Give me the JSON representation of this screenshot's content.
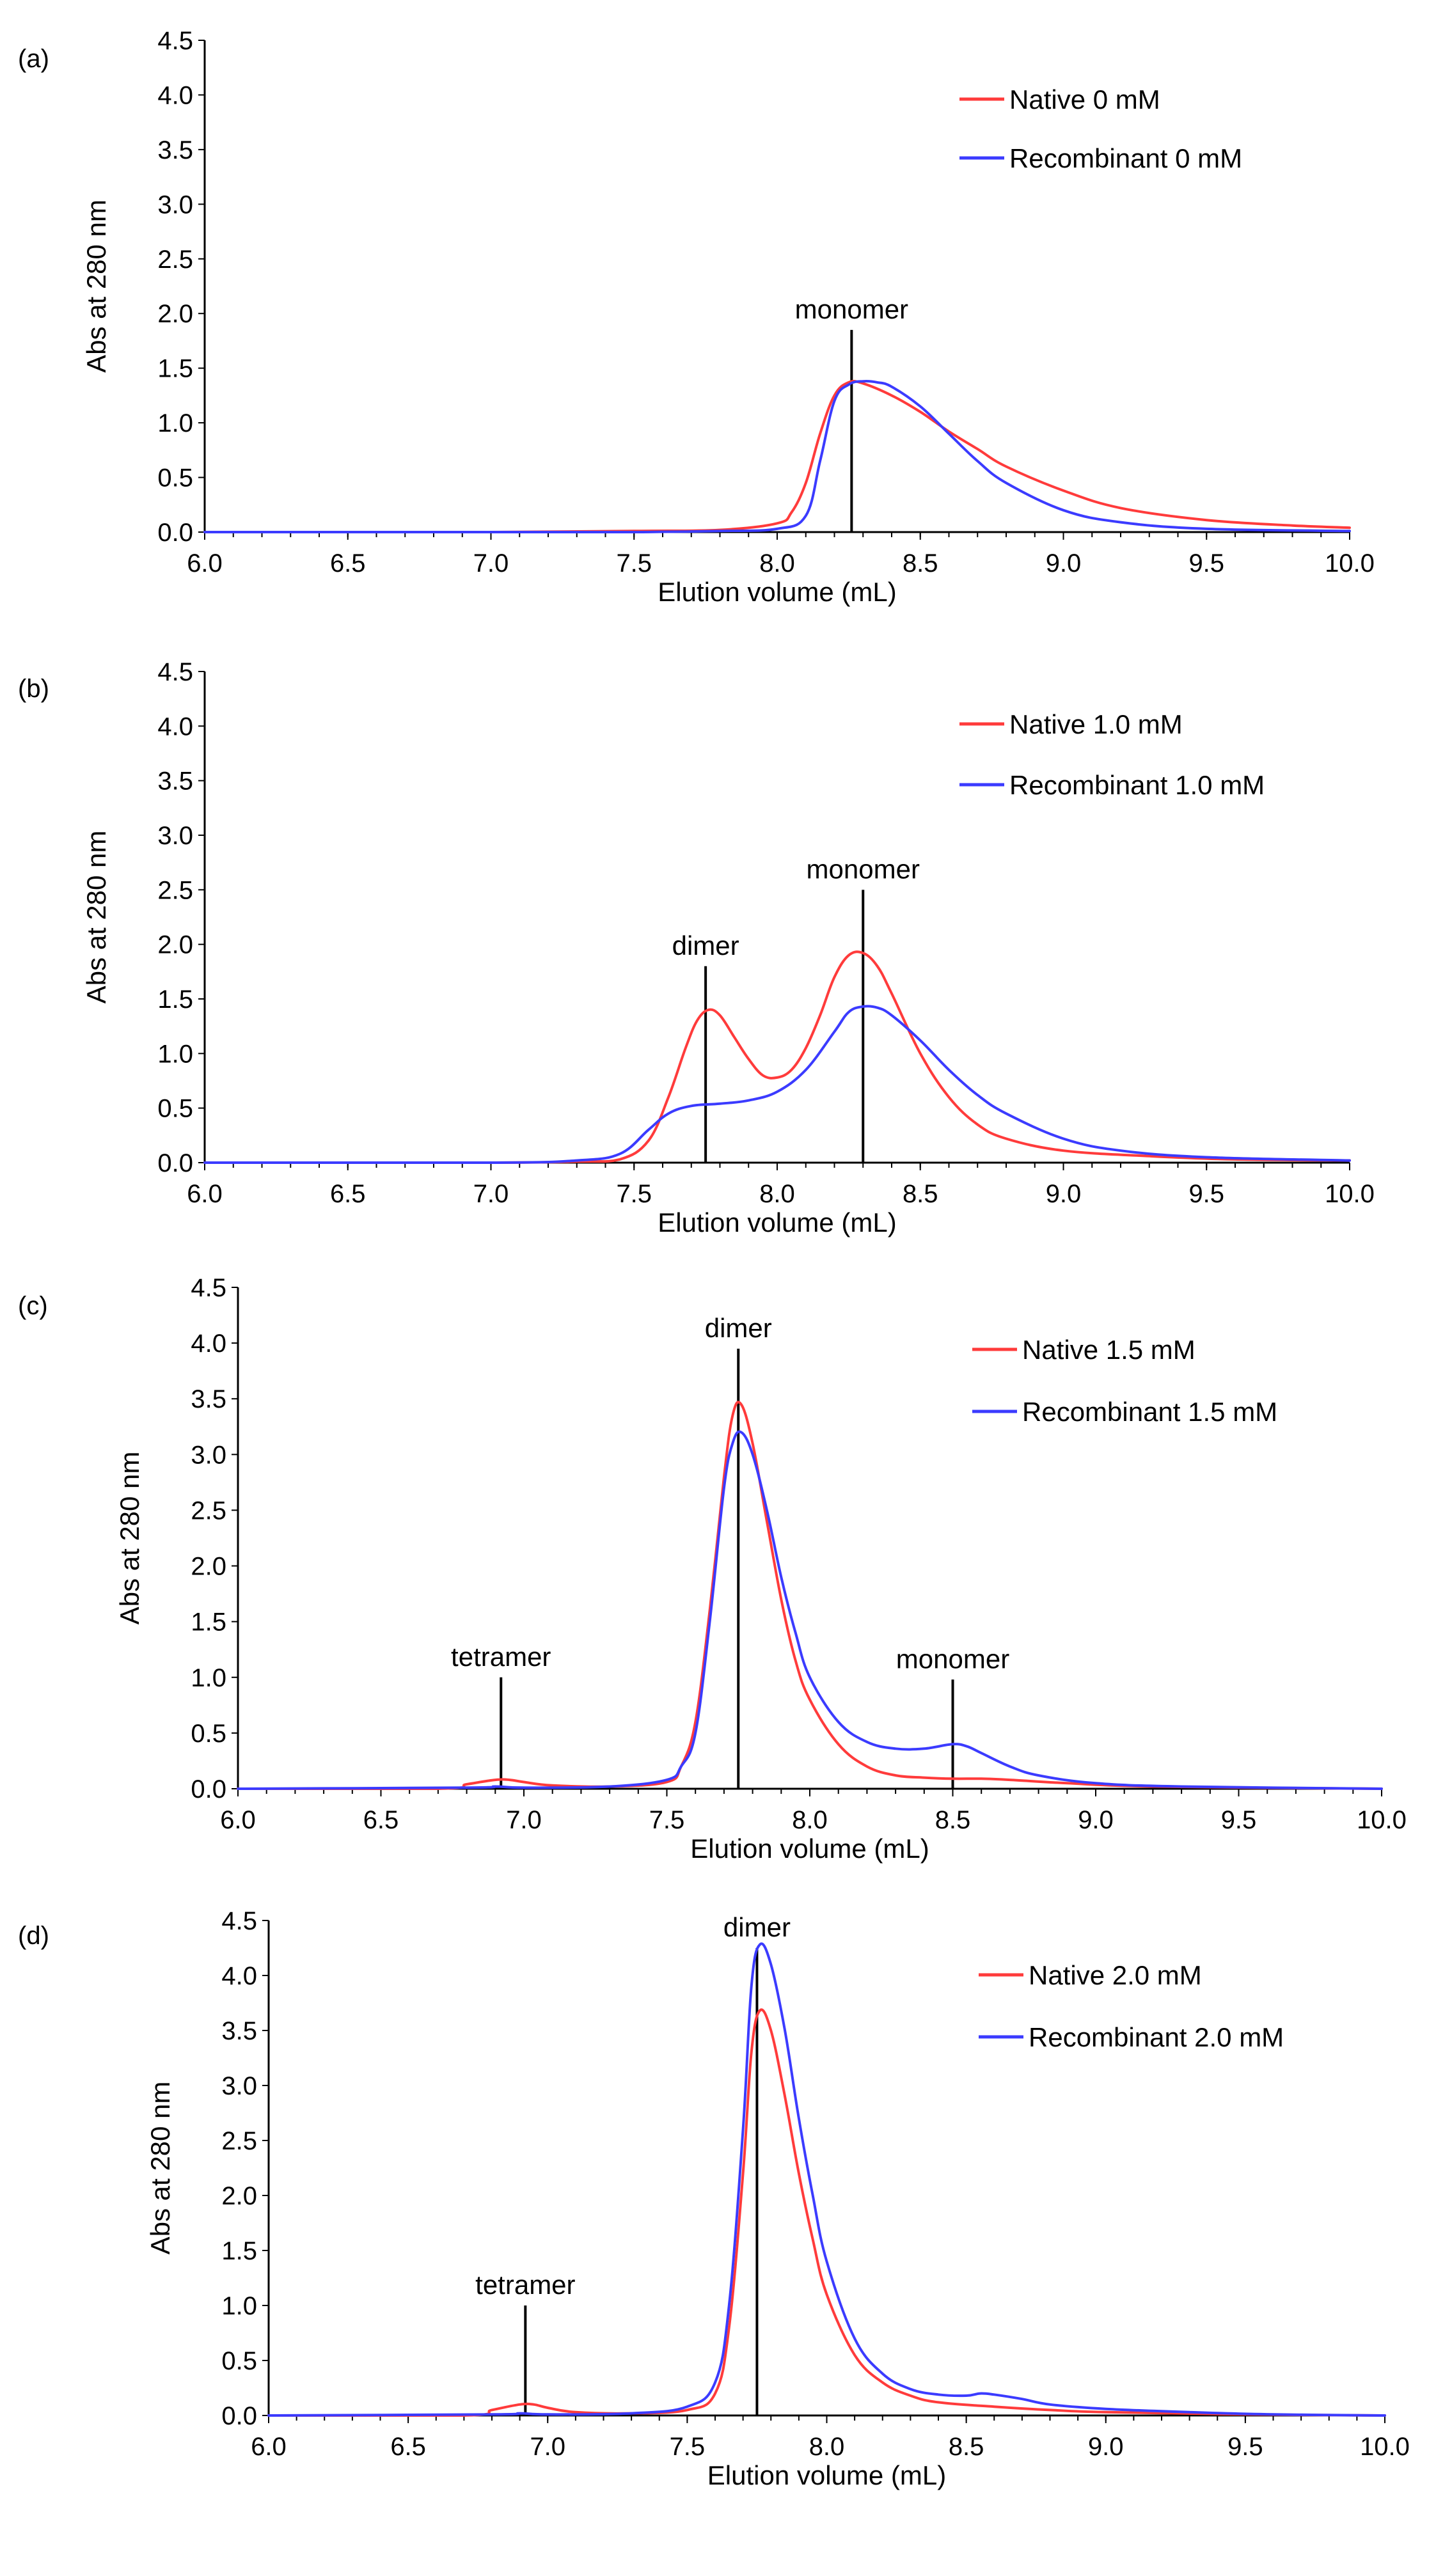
{
  "colors": {
    "native": "#ff3b3b",
    "recombinant": "#3b3bff",
    "axis": "#000000"
  },
  "chart_data": [
    {
      "panel_label": "(a)",
      "type": "line",
      "xlabel": "Elution volume (mL)",
      "ylabel": "Abs at 280 nm",
      "xlim": [
        6.0,
        10.0
      ],
      "ylim": [
        0.0,
        4.5
      ],
      "xticks": [
        "6.0",
        "6.5",
        "7.0",
        "7.5",
        "8.0",
        "8.5",
        "9.0",
        "9.5",
        "10.0"
      ],
      "yticks": [
        "0.0",
        "0.5",
        "1.0",
        "1.5",
        "2.0",
        "2.5",
        "3.0",
        "3.5",
        "4.0",
        "4.5"
      ],
      "legend_position": "top-right",
      "series": [
        {
          "name": "Native 0 mM",
          "color_key": "native",
          "x": [
            6.0,
            6.4,
            7.0,
            7.5,
            7.8,
            8.0,
            8.05,
            8.1,
            8.15,
            8.2,
            8.25,
            8.3,
            8.4,
            8.5,
            8.6,
            8.7,
            8.8,
            9.0,
            9.2,
            9.5,
            9.8,
            10.0
          ],
          "y": [
            0.0,
            0.0,
            0.0,
            0.01,
            0.02,
            0.08,
            0.18,
            0.45,
            0.9,
            1.25,
            1.37,
            1.36,
            1.25,
            1.1,
            0.92,
            0.76,
            0.6,
            0.38,
            0.22,
            0.11,
            0.06,
            0.04
          ]
        },
        {
          "name": "Recombinant 0 mM",
          "color_key": "recombinant",
          "x": [
            6.0,
            7.0,
            7.5,
            7.8,
            8.0,
            8.1,
            8.15,
            8.2,
            8.25,
            8.3,
            8.35,
            8.4,
            8.5,
            8.6,
            8.7,
            8.8,
            9.0,
            9.2,
            9.5,
            10.0
          ],
          "y": [
            0.0,
            0.0,
            0.0,
            0.01,
            0.03,
            0.15,
            0.65,
            1.2,
            1.35,
            1.38,
            1.37,
            1.33,
            1.15,
            0.9,
            0.65,
            0.45,
            0.2,
            0.09,
            0.03,
            0.01
          ]
        }
      ],
      "annotations": [
        {
          "text": "monomer",
          "x": 8.26,
          "line_top": 1.85
        }
      ]
    },
    {
      "panel_label": "(b)",
      "type": "line",
      "xlabel": "Elution volume (mL)",
      "ylabel": "Abs at 280 nm",
      "xlim": [
        6.0,
        10.0
      ],
      "ylim": [
        0.0,
        4.5
      ],
      "xticks": [
        "6.0",
        "6.5",
        "7.0",
        "7.5",
        "8.0",
        "8.5",
        "9.0",
        "9.5",
        "10.0"
      ],
      "yticks": [
        "0.0",
        "0.5",
        "1.0",
        "1.5",
        "2.0",
        "2.5",
        "3.0",
        "3.5",
        "4.0",
        "4.5"
      ],
      "legend_position": "top-right",
      "series": [
        {
          "name": "Native 1.0 mM",
          "color_key": "native",
          "x": [
            6.0,
            7.0,
            7.3,
            7.45,
            7.55,
            7.62,
            7.68,
            7.72,
            7.76,
            7.8,
            7.85,
            7.9,
            7.95,
            8.0,
            8.05,
            8.1,
            8.15,
            8.2,
            8.25,
            8.3,
            8.35,
            8.4,
            8.5,
            8.6,
            8.7,
            8.8,
            9.0,
            9.3,
            9.6,
            10.0
          ],
          "y": [
            0.0,
            0.0,
            0.01,
            0.03,
            0.2,
            0.6,
            1.05,
            1.3,
            1.4,
            1.35,
            1.15,
            0.95,
            0.8,
            0.78,
            0.85,
            1.05,
            1.35,
            1.7,
            1.9,
            1.92,
            1.8,
            1.55,
            1.0,
            0.6,
            0.35,
            0.22,
            0.11,
            0.06,
            0.03,
            0.02
          ]
        },
        {
          "name": "Recombinant 1.0 mM",
          "color_key": "recombinant",
          "x": [
            6.0,
            7.0,
            7.3,
            7.45,
            7.55,
            7.62,
            7.7,
            7.8,
            7.9,
            8.0,
            8.1,
            8.2,
            8.25,
            8.3,
            8.35,
            8.4,
            8.5,
            8.6,
            8.7,
            8.8,
            9.0,
            9.2,
            9.5,
            10.0
          ],
          "y": [
            0.0,
            0.0,
            0.02,
            0.08,
            0.3,
            0.45,
            0.52,
            0.54,
            0.57,
            0.65,
            0.85,
            1.2,
            1.38,
            1.43,
            1.42,
            1.35,
            1.12,
            0.85,
            0.62,
            0.45,
            0.22,
            0.11,
            0.05,
            0.02
          ]
        }
      ],
      "annotations": [
        {
          "text": "dimer",
          "x": 7.75,
          "line_top": 1.8
        },
        {
          "text": "monomer",
          "x": 8.3,
          "line_top": 2.5
        }
      ]
    },
    {
      "panel_label": "(c)",
      "type": "line",
      "xlabel": "Elution volume (mL)",
      "ylabel": "Abs at 280 nm",
      "xlim": [
        6.0,
        10.0
      ],
      "ylim": [
        0.0,
        4.5
      ],
      "xticks": [
        "6.0",
        "6.5",
        "7.0",
        "7.5",
        "8.0",
        "8.5",
        "9.0",
        "9.5",
        "10.0"
      ],
      "yticks": [
        "0.0",
        "0.5",
        "1.0",
        "1.5",
        "2.0",
        "2.5",
        "3.0",
        "3.5",
        "4.0",
        "4.5"
      ],
      "legend_position": "top-right",
      "series": [
        {
          "name": "Native 1.5 mM",
          "color_key": "native",
          "x": [
            6.0,
            6.7,
            6.8,
            6.9,
            6.95,
            7.0,
            7.1,
            7.3,
            7.5,
            7.55,
            7.6,
            7.65,
            7.7,
            7.73,
            7.76,
            7.8,
            7.85,
            7.9,
            7.95,
            8.0,
            8.1,
            8.2,
            8.3,
            8.4,
            8.5,
            8.6,
            8.7,
            8.9,
            9.2,
            10.0
          ],
          "y": [
            0.0,
            0.0,
            0.04,
            0.08,
            0.08,
            0.06,
            0.03,
            0.02,
            0.06,
            0.2,
            0.6,
            1.6,
            2.8,
            3.35,
            3.45,
            3.1,
            2.4,
            1.7,
            1.15,
            0.8,
            0.4,
            0.2,
            0.12,
            0.1,
            0.09,
            0.09,
            0.08,
            0.05,
            0.02,
            0.0
          ]
        },
        {
          "name": "Recombinant 1.5 mM",
          "color_key": "recombinant",
          "x": [
            6.0,
            6.8,
            6.9,
            7.0,
            7.3,
            7.5,
            7.55,
            7.6,
            7.65,
            7.7,
            7.73,
            7.76,
            7.8,
            7.85,
            7.9,
            7.95,
            8.0,
            8.1,
            8.2,
            8.3,
            8.4,
            8.5,
            8.55,
            8.6,
            8.7,
            8.8,
            9.0,
            9.3,
            10.0
          ],
          "y": [
            0.0,
            0.01,
            0.02,
            0.01,
            0.02,
            0.08,
            0.2,
            0.5,
            1.5,
            2.7,
            3.1,
            3.2,
            3.0,
            2.5,
            1.9,
            1.4,
            1.0,
            0.6,
            0.42,
            0.36,
            0.36,
            0.4,
            0.38,
            0.32,
            0.2,
            0.12,
            0.05,
            0.02,
            0.0
          ]
        }
      ],
      "annotations": [
        {
          "text": "tetramer",
          "x": 6.92,
          "line_top": 1.0
        },
        {
          "text": "dimer",
          "x": 7.75,
          "line_top": 3.95
        },
        {
          "text": "monomer",
          "x": 8.5,
          "line_top": 0.98
        }
      ]
    },
    {
      "panel_label": "(d)",
      "type": "line",
      "xlabel": "Elution volume (mL)",
      "ylabel": "Abs at 280 nm",
      "xlim": [
        6.0,
        10.0
      ],
      "ylim": [
        0.0,
        4.5
      ],
      "xticks": [
        "6.0",
        "6.5",
        "7.0",
        "7.5",
        "8.0",
        "8.5",
        "9.0",
        "9.5",
        "10.0"
      ],
      "yticks": [
        "0.0",
        "0.5",
        "1.0",
        "1.5",
        "2.0",
        "2.5",
        "3.0",
        "3.5",
        "4.0",
        "4.5"
      ],
      "legend_position": "top-right",
      "series": [
        {
          "name": "Native 2.0 mM",
          "color_key": "native",
          "x": [
            6.0,
            6.7,
            6.8,
            6.9,
            6.95,
            7.0,
            7.1,
            7.3,
            7.5,
            7.6,
            7.65,
            7.7,
            7.73,
            7.76,
            7.8,
            7.85,
            7.9,
            7.95,
            8.0,
            8.1,
            8.2,
            8.3,
            8.4,
            8.6,
            8.8,
            9.0,
            9.5,
            10.0
          ],
          "y": [
            0.0,
            0.0,
            0.05,
            0.1,
            0.1,
            0.07,
            0.03,
            0.02,
            0.05,
            0.2,
            0.8,
            2.2,
            3.3,
            3.68,
            3.5,
            2.9,
            2.2,
            1.6,
            1.1,
            0.55,
            0.3,
            0.18,
            0.12,
            0.08,
            0.05,
            0.03,
            0.01,
            0.0
          ]
        },
        {
          "name": "Recombinant 2.0 mM",
          "color_key": "recombinant",
          "x": [
            6.0,
            6.8,
            6.9,
            7.0,
            7.3,
            7.5,
            7.6,
            7.65,
            7.7,
            7.73,
            7.76,
            7.8,
            7.85,
            7.9,
            7.95,
            8.0,
            8.1,
            8.2,
            8.3,
            8.4,
            8.5,
            8.55,
            8.6,
            8.7,
            8.8,
            9.0,
            9.3,
            9.6,
            10.0
          ],
          "y": [
            0.0,
            0.01,
            0.02,
            0.01,
            0.02,
            0.08,
            0.3,
            1.0,
            2.6,
            3.9,
            4.28,
            4.1,
            3.5,
            2.7,
            2.0,
            1.4,
            0.7,
            0.38,
            0.24,
            0.19,
            0.18,
            0.2,
            0.19,
            0.15,
            0.1,
            0.06,
            0.03,
            0.01,
            0.0
          ]
        }
      ],
      "annotations": [
        {
          "text": "tetramer",
          "x": 6.92,
          "line_top": 1.0
        },
        {
          "text": "dimer",
          "x": 7.75,
          "line_top": 4.25
        }
      ]
    }
  ]
}
